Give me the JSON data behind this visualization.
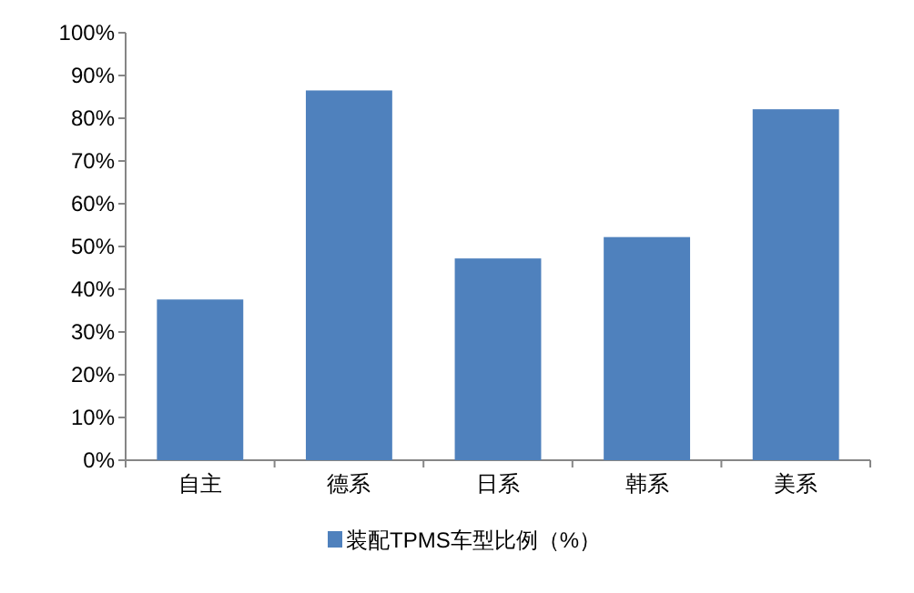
{
  "chart_data": {
    "type": "bar",
    "categories": [
      "自主",
      "德系",
      "日系",
      "韩系",
      "美系"
    ],
    "series": [
      {
        "name": "装配TPMS车型比例（%）",
        "color": "#4f81bd",
        "values": [
          37.6,
          86.5,
          47.2,
          52.2,
          82.1
        ]
      }
    ],
    "ylim": [
      0,
      100
    ],
    "yticks": [
      {
        "value": 0,
        "label": "0%"
      },
      {
        "value": 10,
        "label": "10%"
      },
      {
        "value": 20,
        "label": "20%"
      },
      {
        "value": 30,
        "label": "30%"
      },
      {
        "value": 40,
        "label": "40%"
      },
      {
        "value": 50,
        "label": "50%"
      },
      {
        "value": 60,
        "label": "60%"
      },
      {
        "value": 70,
        "label": "70%"
      },
      {
        "value": 80,
        "label": "80%"
      },
      {
        "value": 90,
        "label": "90%"
      },
      {
        "value": 100,
        "label": "100%"
      }
    ],
    "grid": false,
    "legend": "bottom"
  }
}
